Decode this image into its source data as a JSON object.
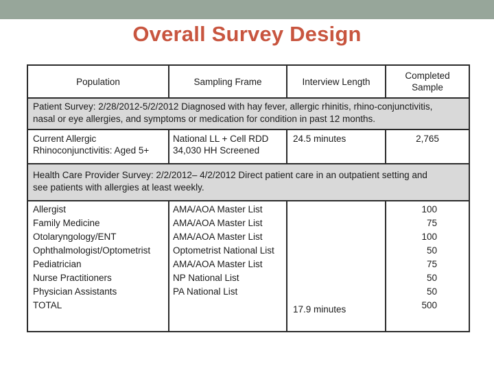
{
  "slide": {
    "title": "Overall Survey Design"
  },
  "table": {
    "headers": {
      "population": "Population",
      "sampling_frame": "Sampling Frame",
      "interview_length": "Interview  Length",
      "completed_sample_line1": "Completed",
      "completed_sample_line2": "Sample"
    },
    "patient_section": {
      "description_line1": "Patient Survey: 2/28/2012-5/2/2012     Diagnosed with hay fever, allergic rhinitis, rhino-conjunctivitis,",
      "description_line2": "nasal or eye allergies, and symptoms or medication for condition in past 12 months.",
      "population_line1": "Current Allergic",
      "population_line2": "Rhinoconjunctivitis:  Aged 5+",
      "frame_line1": "National LL + Cell RDD",
      "frame_line2": "34,030 HH Screened",
      "interview_length": "24.5 minutes",
      "completed_sample": "2,765"
    },
    "provider_section": {
      "description_line1": "Health Care Provider Survey:  2/2/2012– 4/2/2012       Direct patient care in an outpatient setting and",
      "description_line2": "see patients with allergies at least weekly.",
      "rows": [
        {
          "population": "Allergist",
          "frame": "AMA/AOA Master List",
          "sample": "100"
        },
        {
          "population": "Family Medicine",
          "frame": "AMA/AOA Master List",
          "sample": "75"
        },
        {
          "population": "Otolaryngology/ENT",
          "frame": "AMA/AOA Master List",
          "sample": "100"
        },
        {
          "population": "Ophthalmologist/Optometrist",
          "frame": "Optometrist National List",
          "sample": "50"
        },
        {
          "population": "Pediatrician",
          "frame": "AMA/AOA Master List",
          "sample": "75"
        },
        {
          "population": "Nurse Practitioners",
          "frame": "NP National List",
          "sample": "50"
        },
        {
          "population": "Physician Assistants",
          "frame": "PA National List",
          "sample": "50"
        },
        {
          "population": "TOTAL",
          "frame": "",
          "sample": "500"
        }
      ],
      "interview_length": "17.9 minutes"
    }
  },
  "colors": {
    "title": "#c8553f",
    "top_bar": "#97a69a",
    "band": "#d9d9d9"
  }
}
